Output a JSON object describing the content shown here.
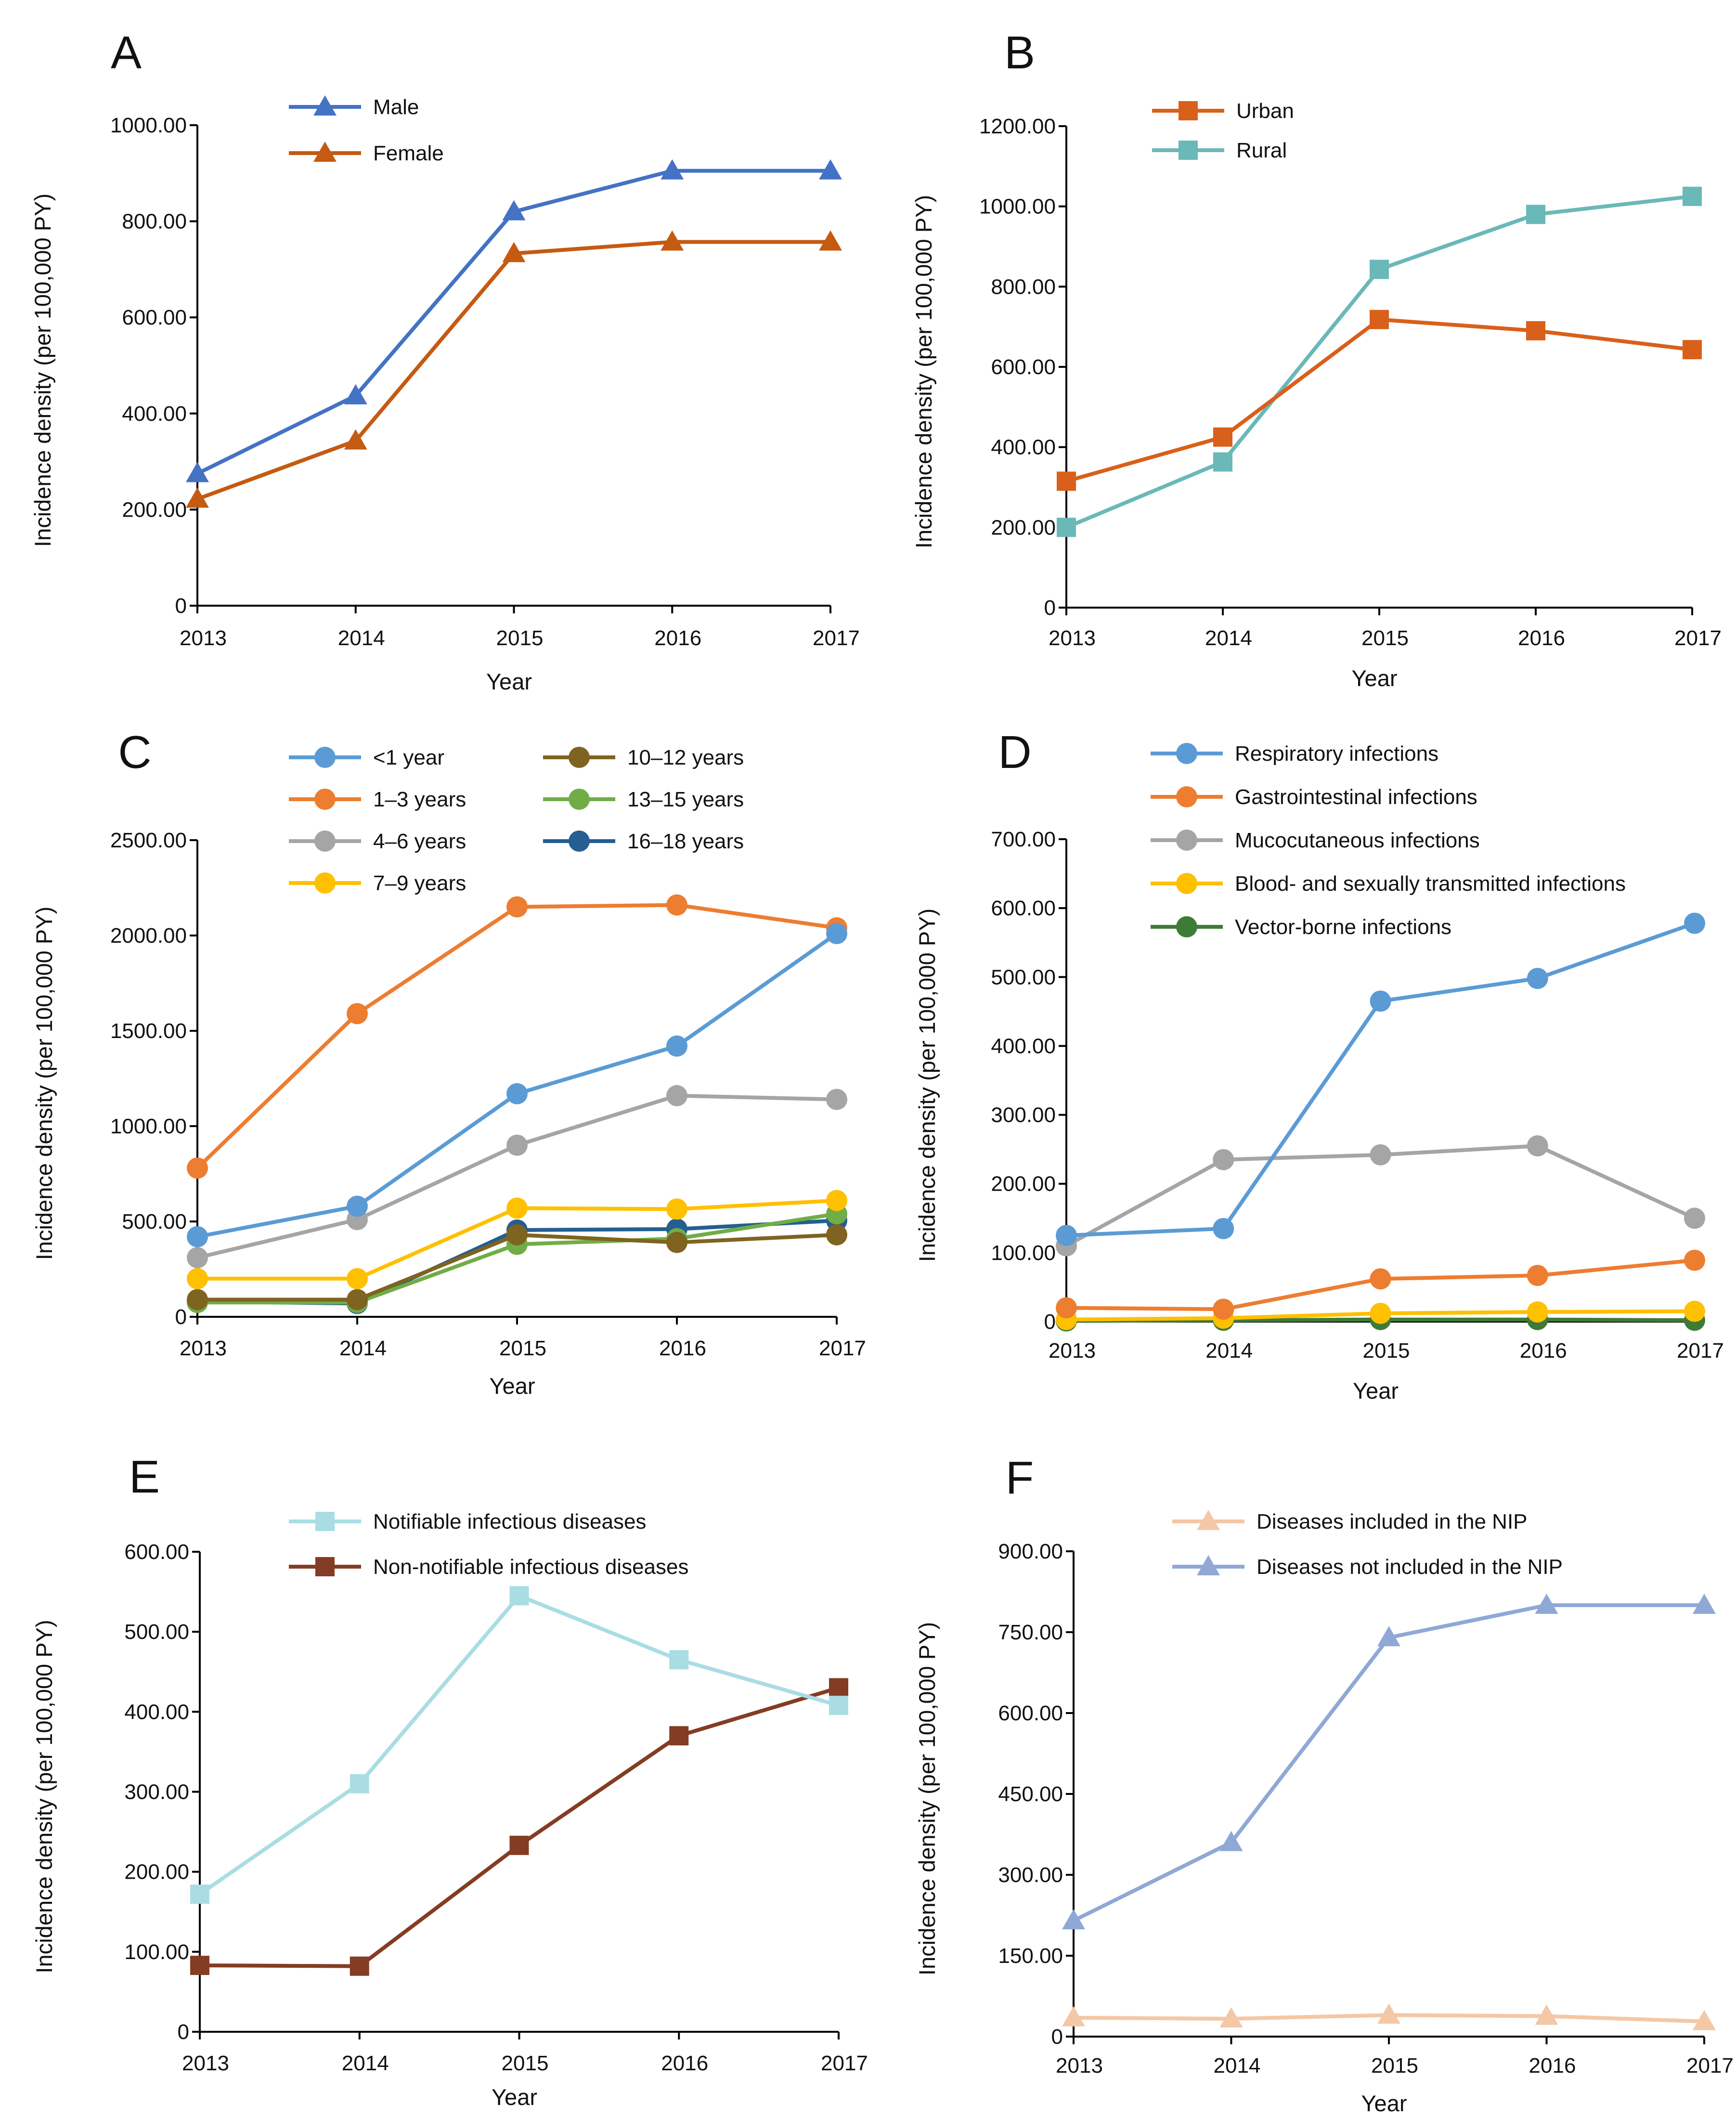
{
  "chart_data": [
    {
      "panel": "A",
      "type": "line",
      "xlabel": "Year",
      "ylabel": "Incidence density (per 100,000 PY)",
      "categories": [
        "2013",
        "2014",
        "2015",
        "2016",
        "2017"
      ],
      "ylim": [
        0,
        1000
      ],
      "yticks": [
        "0",
        "200.00",
        "400.00",
        "600.00",
        "800.00",
        "1000.00"
      ],
      "series": [
        {
          "name": "Male",
          "marker": "triangle",
          "color": "#4472C4",
          "values": [
            275,
            437,
            820,
            905,
            905
          ]
        },
        {
          "name": "Female",
          "marker": "triangle",
          "color": "#C55A11",
          "values": [
            222,
            343,
            733,
            757,
            757
          ]
        }
      ]
    },
    {
      "panel": "B",
      "type": "line",
      "xlabel": "Year",
      "ylabel": "Incidence density (per 100,000 PY)",
      "categories": [
        "2013",
        "2014",
        "2015",
        "2016",
        "2017"
      ],
      "ylim": [
        0,
        1200
      ],
      "yticks": [
        "0",
        "200.00",
        "400.00",
        "600.00",
        "800.00",
        "1000.00",
        "1200.00"
      ],
      "series": [
        {
          "name": "Urban",
          "marker": "square",
          "color": "#D9601A",
          "values": [
            315,
            425,
            718,
            690,
            643
          ]
        },
        {
          "name": "Rural",
          "marker": "square",
          "color": "#6AB8B8",
          "values": [
            200,
            363,
            843,
            980,
            1025
          ]
        }
      ]
    },
    {
      "panel": "C",
      "type": "line",
      "xlabel": "Year",
      "ylabel": "Incidence density (per 100,000 PY)",
      "categories": [
        "2013",
        "2014",
        "2015",
        "2016",
        "2017"
      ],
      "ylim": [
        0,
        2500
      ],
      "yticks": [
        "0",
        "500.00",
        "1000.00",
        "1500.00",
        "2000.00",
        "2500.00"
      ],
      "series": [
        {
          "name": "<1 year",
          "marker": "circle",
          "color": "#5B9BD5",
          "values": [
            420,
            580,
            1170,
            1420,
            2010
          ]
        },
        {
          "name": "1–3 years",
          "marker": "circle",
          "color": "#ED7D31",
          "values": [
            780,
            1590,
            2150,
            2160,
            2040
          ]
        },
        {
          "name": "4–6 years",
          "marker": "circle",
          "color": "#A5A5A5",
          "values": [
            310,
            510,
            900,
            1160,
            1140
          ]
        },
        {
          "name": "7–9 years",
          "marker": "circle",
          "color": "#FFC000",
          "values": [
            200,
            200,
            570,
            565,
            610
          ]
        },
        {
          "name": "10–12 years",
          "marker": "circle",
          "color": "#7F6320",
          "values": [
            90,
            90,
            430,
            390,
            430
          ]
        },
        {
          "name": "13–15 years",
          "marker": "circle",
          "color": "#70AD47",
          "values": [
            75,
            75,
            380,
            410,
            540
          ]
        },
        {
          "name": "16–18 years",
          "marker": "circle",
          "color": "#255E91",
          "values": [
            80,
            70,
            455,
            460,
            505
          ]
        }
      ]
    },
    {
      "panel": "D",
      "type": "line",
      "xlabel": "Year",
      "ylabel": "Incidence density (per 100,000 PY)",
      "categories": [
        "2013",
        "2014",
        "2015",
        "2016",
        "2017"
      ],
      "ylim": [
        0,
        700
      ],
      "yticks": [
        "0",
        "100.00",
        "200.00",
        "300.00",
        "400.00",
        "500.00",
        "600.00",
        "700.00"
      ],
      "series": [
        {
          "name": "Respiratory infections",
          "marker": "circle",
          "color": "#5B9BD5",
          "values": [
            125,
            135,
            465,
            498,
            578
          ]
        },
        {
          "name": "Gastrointestinal infections",
          "marker": "circle",
          "color": "#ED7D31",
          "values": [
            20,
            18,
            62,
            67,
            89
          ]
        },
        {
          "name": "Mucocutaneous infections",
          "marker": "circle",
          "color": "#A5A5A5",
          "values": [
            110,
            235,
            242,
            255,
            150
          ]
        },
        {
          "name": "Blood- and sexually transmitted infections",
          "marker": "circle",
          "color": "#FFC000",
          "values": [
            3,
            5,
            12,
            14,
            15
          ]
        },
        {
          "name": "Vector-borne infections",
          "marker": "circle",
          "color": "#3E7B36",
          "values": [
            1,
            2,
            3,
            3,
            2
          ]
        }
      ]
    },
    {
      "panel": "E",
      "type": "line",
      "xlabel": "Year",
      "ylabel": "Incidence density (per 100,000 PY)",
      "categories": [
        "2013",
        "2014",
        "2015",
        "2016",
        "2017"
      ],
      "ylim": [
        0,
        600
      ],
      "yticks": [
        "0",
        "100.00",
        "200.00",
        "300.00",
        "400.00",
        "500.00",
        "600.00"
      ],
      "series": [
        {
          "name": "Notifiable infectious diseases",
          "marker": "square",
          "color": "#A9DDE3",
          "values": [
            172,
            310,
            545,
            465,
            408
          ]
        },
        {
          "name": "Non-notifiable infectious diseases",
          "marker": "square",
          "color": "#843C24",
          "values": [
            83,
            82,
            233,
            370,
            430
          ]
        }
      ]
    },
    {
      "panel": "F",
      "type": "line",
      "xlabel": "Year",
      "ylabel": "Incidence density (per 100,000 PY)",
      "categories": [
        "2013",
        "2014",
        "2015",
        "2016",
        "2017"
      ],
      "ylim": [
        0,
        900
      ],
      "yticks": [
        "0",
        "150.00",
        "300.00",
        "450.00",
        "600.00",
        "750.00",
        "900.00"
      ],
      "series": [
        {
          "name": "Diseases included in the NIP",
          "marker": "triangle",
          "color": "#F4C7A6",
          "values": [
            35,
            33,
            40,
            38,
            28
          ]
        },
        {
          "name": "Diseases not included in the NIP",
          "marker": "triangle",
          "color": "#8FA8D6",
          "values": [
            215,
            360,
            740,
            800,
            800
          ]
        }
      ]
    }
  ]
}
